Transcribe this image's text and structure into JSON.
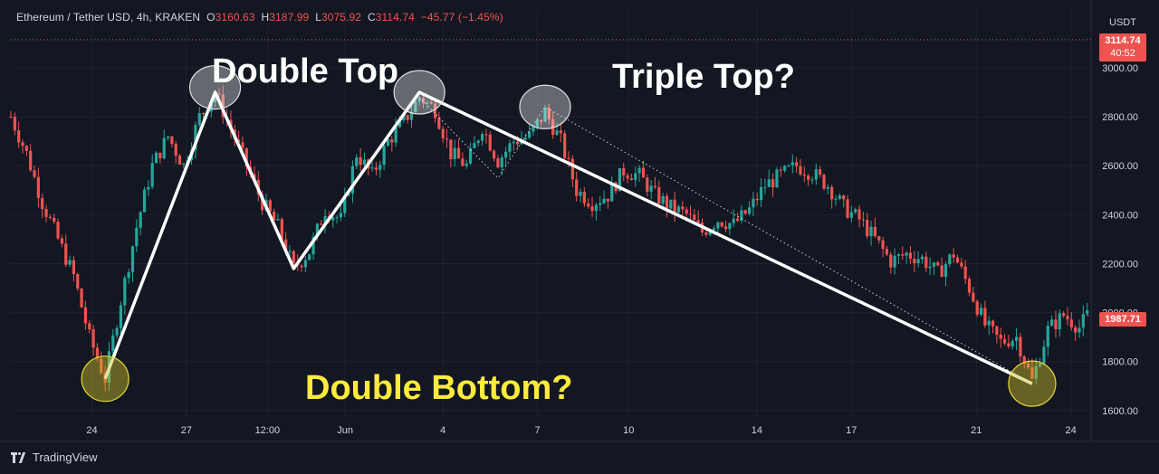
{
  "header": {
    "symbol": "Ethereum / Tether USD",
    "interval": "4h",
    "exchange": "KRAKEN",
    "open_label": "O",
    "open": "3160.63",
    "high_label": "H",
    "high": "3187.99",
    "low_label": "L",
    "low": "3075.92",
    "close_label": "C",
    "close": "3114.74",
    "change": "−45.77 (−1.45%)"
  },
  "currency_label": "USDT",
  "last_price": {
    "value": "3114.74",
    "countdown": "40:52"
  },
  "crosshair_price": "1987.71",
  "annotations": {
    "double_top": "Double Top",
    "triple_top": "Triple Top?",
    "double_bottom": "Double Bottom?"
  },
  "branding": {
    "name": "TradingView"
  },
  "colors": {
    "background": "#131722",
    "up": "#26a69a",
    "down": "#ef5350",
    "grid": "#1e222d",
    "annotation": "#ffffff",
    "highlight": "#ffeb3b"
  },
  "chart_data": {
    "type": "candlestick",
    "title": "",
    "ylabel": "",
    "xlabel": "",
    "ylim": [
      1570,
      3240
    ],
    "y_ticks": [
      1600,
      1800,
      2000,
      2200,
      2400,
      2600,
      2800,
      3000
    ],
    "y_tick_labels": [
      "1600.00",
      "1800.00",
      "2000.00",
      "2200.00",
      "2400.00",
      "2600.00",
      "2800.00",
      "3000.00"
    ],
    "x_ticks": [
      "24",
      "27",
      "12:00",
      "Jun",
      "4",
      "7",
      "10",
      "14",
      "17",
      "21",
      "24"
    ],
    "grid": true,
    "price_points": [
      [
        0,
        2800
      ],
      [
        4,
        2650
      ],
      [
        8,
        2450
      ],
      [
        12,
        2300
      ],
      [
        16,
        2150
      ],
      [
        20,
        1900
      ],
      [
        24,
        1730
      ],
      [
        28,
        2050
      ],
      [
        32,
        2350
      ],
      [
        36,
        2600
      ],
      [
        40,
        2720
      ],
      [
        44,
        2600
      ],
      [
        48,
        2800
      ],
      [
        52,
        2900
      ],
      [
        56,
        2750
      ],
      [
        60,
        2600
      ],
      [
        64,
        2450
      ],
      [
        68,
        2350
      ],
      [
        72,
        2180
      ],
      [
        76,
        2250
      ],
      [
        80,
        2420
      ],
      [
        84,
        2380
      ],
      [
        88,
        2650
      ],
      [
        92,
        2560
      ],
      [
        96,
        2700
      ],
      [
        100,
        2780
      ],
      [
        104,
        2880
      ],
      [
        108,
        2830
      ],
      [
        112,
        2650
      ],
      [
        116,
        2600
      ],
      [
        120,
        2760
      ],
      [
        124,
        2620
      ],
      [
        128,
        2700
      ],
      [
        132,
        2720
      ],
      [
        136,
        2820
      ],
      [
        140,
        2700
      ],
      [
        144,
        2500
      ],
      [
        148,
        2450
      ],
      [
        152,
        2480
      ],
      [
        156,
        2580
      ],
      [
        160,
        2560
      ],
      [
        164,
        2480
      ],
      [
        168,
        2430
      ],
      [
        172,
        2400
      ],
      [
        176,
        2330
      ],
      [
        180,
        2380
      ],
      [
        184,
        2360
      ],
      [
        188,
        2420
      ],
      [
        192,
        2520
      ],
      [
        196,
        2560
      ],
      [
        200,
        2600
      ],
      [
        204,
        2570
      ],
      [
        208,
        2520
      ],
      [
        212,
        2430
      ],
      [
        216,
        2380
      ],
      [
        220,
        2300
      ],
      [
        224,
        2210
      ],
      [
        228,
        2240
      ],
      [
        232,
        2220
      ],
      [
        236,
        2160
      ],
      [
        240,
        2240
      ],
      [
        244,
        2100
      ],
      [
        248,
        1950
      ],
      [
        252,
        1880
      ],
      [
        256,
        1900
      ],
      [
        260,
        1720
      ],
      [
        264,
        1930
      ],
      [
        268,
        1990
      ],
      [
        272,
        1940
      ],
      [
        274,
        1987.71
      ]
    ],
    "x_domain": [
      0,
      275
    ],
    "pattern_lines": [
      {
        "style": "solid",
        "points": [
          [
            24,
            1730
          ],
          [
            52,
            2900
          ],
          [
            72,
            2180
          ],
          [
            104,
            2900
          ],
          [
            260,
            1710
          ]
        ]
      },
      {
        "style": "dotted",
        "points": [
          [
            104,
            2880
          ],
          [
            124,
            2550
          ],
          [
            136,
            2840
          ],
          [
            260,
            1710
          ]
        ]
      }
    ],
    "highlight_circles": [
      {
        "x": 52,
        "y": 2920,
        "color": "white"
      },
      {
        "x": 104,
        "y": 2900,
        "color": "white"
      },
      {
        "x": 136,
        "y": 2840,
        "color": "white"
      },
      {
        "x": 24,
        "y": 1730,
        "color": "yellow"
      },
      {
        "x": 260,
        "y": 1710,
        "color": "yellow"
      }
    ],
    "last_price_level": 3114.74,
    "current_price_level": 1987.71
  }
}
